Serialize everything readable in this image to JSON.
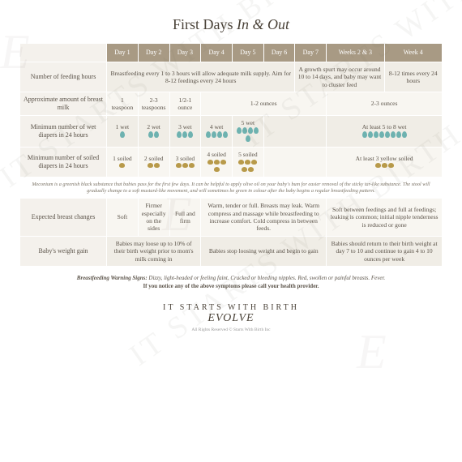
{
  "title_main": "First Days",
  "title_sub": " In & Out",
  "watermark_text": "IT STARTS WITH BIRTH",
  "watermark_logo": "E",
  "headers": [
    "",
    "Day 1",
    "Day 2",
    "Day 3",
    "Day 4",
    "Day 5",
    "Day 6",
    "Day 7",
    "Weeks 2 & 3",
    "Week 4"
  ],
  "rows": {
    "feeding": {
      "label": "Number of feeding hours",
      "c1": "Breastfeeding every 1 to 3 hours will allow adequate milk supply. Aim for 8-12 feedings every 24 hours",
      "c2": "A growth spurt may occur around 10 to 14 days, and baby may want to cluster feed",
      "c3": "8-12 times every 24 hours"
    },
    "milk": {
      "label": "Approximate amount of breast milk",
      "d1": "1 teaspoon",
      "d2": "2-3 teaspoons",
      "d3": "1/2-1 ounce",
      "d4": "1-2 ounces",
      "d5": "2-3 ounces"
    },
    "wet": {
      "label": "Minimum number of wet diapers in 24 hours",
      "d1": "1 wet",
      "d2": "2 wet",
      "d3": "3 wet",
      "d4": "4 wet",
      "d5": "5 wet",
      "d6": "At least 5 to 8 wet"
    },
    "soiled": {
      "label": "Minimum number of soiled diapers in 24 hours",
      "d1": "1 soiled",
      "d2": "2 soiled",
      "d3": "3 soiled",
      "d4": "4 soiled",
      "d5": "5 soiled",
      "d6": "At least 3 yellow soiled"
    },
    "note": "Meconium is a greenish black substance that babies pass for the first few days. It can be helpful to apply olive oil on your baby's bum for easier removal of the sticky tar-like substance. The stool will gradually change to a soft mustard-like movement, and will sometimes be green in colour after the baby begins a regular breastfeeding pattern.",
    "breast": {
      "label": "Expected breast changes",
      "d1": "Soft",
      "d2": "Firmer especially on the sides",
      "d3": "Full and firm",
      "d4": "Warm, tender or full. Breasts may leak. Warm compress and massage while breastfeeding to increase comfort. Cold compress in between feeds.",
      "d5": "Soft between feedings and full at feedings; leaking is common; initial nipple tenderness is reduced or gone"
    },
    "weight": {
      "label": "Baby's weight gain",
      "d1": "Babies may loose up to 10% of their birth weight prior to mom's milk coming in",
      "d2": "Babies stop loosing weight and begin to gain",
      "d3": "Babies should return to their birth weight at day 7 to 10 and continue to gain 4 to 10 ounces per week"
    }
  },
  "warning_label": "Breastfeeding Warning Signs:",
  "warning_text": " Dizzy, light-headed or feeling faint. Cracked or bleeding nipples. Red, swollen or painful breasts. Fever.",
  "warning_action": "If you notice any of the above symptoms please call your health provider.",
  "brand_line": "IT STARTS WITH BIRTH",
  "brand_logo": "EVOLVE",
  "copyright": "All Rights Reserved © Starts With Birth Inc",
  "colors": {
    "header_bg": "#a89a84",
    "row_bg_a": "#f0ede6",
    "row_bg_b": "#f8f6f1",
    "wet_icon": "#6eb2b0",
    "soil_icon": "#b89a4a",
    "text": "#5a5248"
  }
}
